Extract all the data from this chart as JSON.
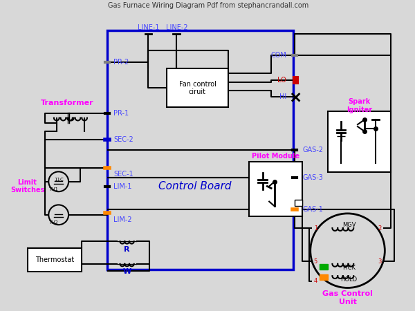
{
  "bg_color": "#d8d8d8",
  "wire_color": "#000000",
  "blue_color": "#0000cc",
  "magenta_color": "#ff00ff",
  "red_color": "#cc0000",
  "orange_color": "#ff8800",
  "green_color": "#00aa00",
  "label_blue": "#4444ff",
  "label_magenta": "#ff44ff",
  "title": "Gas Furnace Wiring Diagram Pdf from stephancrandall.com",
  "control_board_label": "Control Board",
  "transformer_label": "Transformer",
  "limit_switches_label": "Limit\nSwitches",
  "thermostat_label": "Thermostat",
  "fan_control_label": "Fan control\nciruit",
  "pilot_module_label": "Pilot Module",
  "spark_igniter_label": "Spark\nIgniter",
  "gas_control_label": "Gas Control\nUnit"
}
